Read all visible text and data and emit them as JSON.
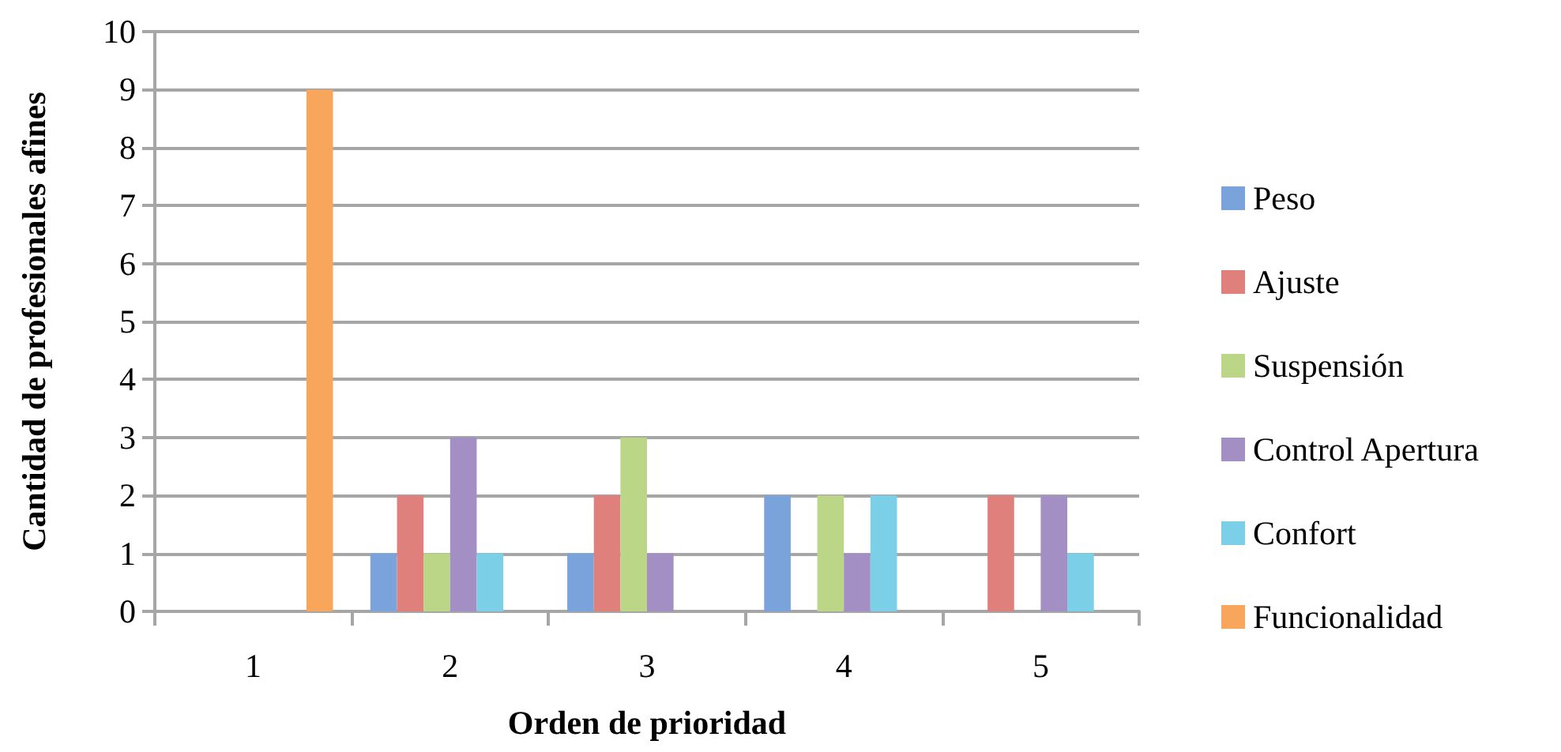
{
  "chart_data": {
    "type": "bar",
    "xlabel": "Orden de prioridad",
    "ylabel": "Cantidad de profesionales afines",
    "categories": [
      "1",
      "2",
      "3",
      "4",
      "5"
    ],
    "series": [
      {
        "name": "Peso",
        "color": "#7aa3dc",
        "values": [
          null,
          1,
          1,
          2,
          null
        ]
      },
      {
        "name": "Ajuste",
        "color": "#e0807c",
        "values": [
          null,
          2,
          2,
          null,
          2
        ]
      },
      {
        "name": "Suspensión",
        "color": "#bcd688",
        "values": [
          null,
          1,
          3,
          2,
          null
        ]
      },
      {
        "name": "Control Apertura",
        "color": "#a48fc4",
        "values": [
          null,
          3,
          1,
          1,
          2
        ]
      },
      {
        "name": "Confort",
        "color": "#7bcfe6",
        "values": [
          null,
          1,
          null,
          2,
          1
        ]
      },
      {
        "name": "Funcionalidad",
        "color": "#f8a65c",
        "values": [
          9,
          null,
          null,
          null,
          null
        ]
      }
    ],
    "ylim": [
      0,
      10
    ],
    "yticks": [
      0,
      1,
      2,
      3,
      4,
      5,
      6,
      7,
      8,
      9,
      10
    ],
    "grid": "y",
    "legend": "right"
  }
}
